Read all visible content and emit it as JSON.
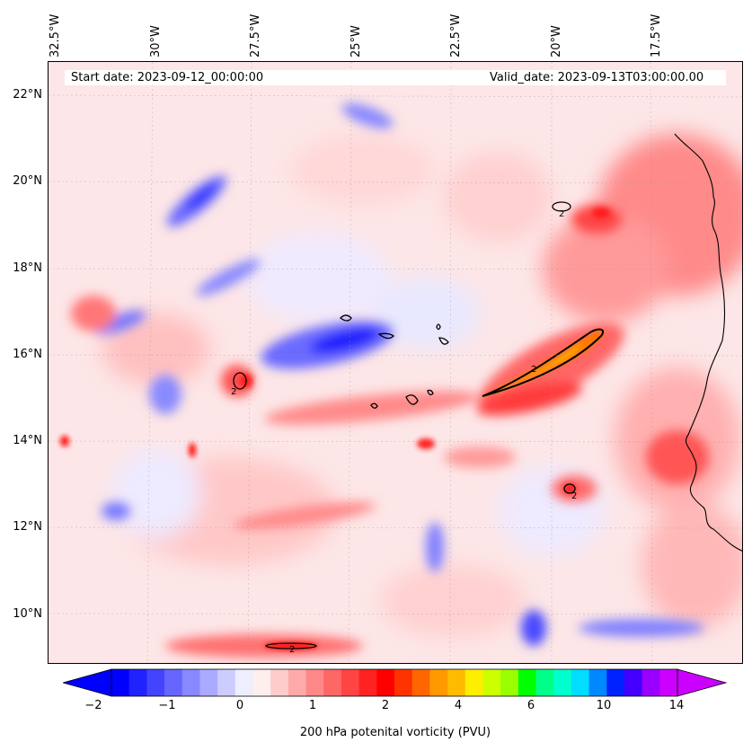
{
  "map": {
    "start_date": "Start date: 2023-09-12_00:00:00",
    "valid_date": "Valid_date: 2023-09-13T03:00:00.00",
    "contour_label": "2"
  },
  "lon_labels": [
    "32.5°W",
    "30°W",
    "27.5°W",
    "25°W",
    "22.5°W",
    "20°W",
    "17.5°W"
  ],
  "lat_labels": [
    "22°N",
    "20°N",
    "18°N",
    "16°N",
    "14°N",
    "12°N",
    "10°N"
  ],
  "colorbar": {
    "label": "200 hPa potenital vorticity (PVU)",
    "ticks": [
      "−2",
      "−1",
      "0",
      "1",
      "2",
      "4",
      "6",
      "10",
      "14"
    ],
    "colors": [
      "#0000ff",
      "#2222ff",
      "#4444ff",
      "#6666ff",
      "#8888ff",
      "#aaaaff",
      "#ccccff",
      "#eeeeff",
      "#ffeeee",
      "#ffcccc",
      "#ffaaaa",
      "#ff8888",
      "#ff6666",
      "#ff4444",
      "#ff2222",
      "#ff0000",
      "#ff3300",
      "#ff6600",
      "#ff9900",
      "#ffbb00",
      "#ffee00",
      "#ccff00",
      "#99ff00",
      "#00ff00",
      "#00ff88",
      "#00ffcc",
      "#00ddff",
      "#0088ff",
      "#0022ff",
      "#4400ff",
      "#9900ff",
      "#cc00ff"
    ]
  }
}
